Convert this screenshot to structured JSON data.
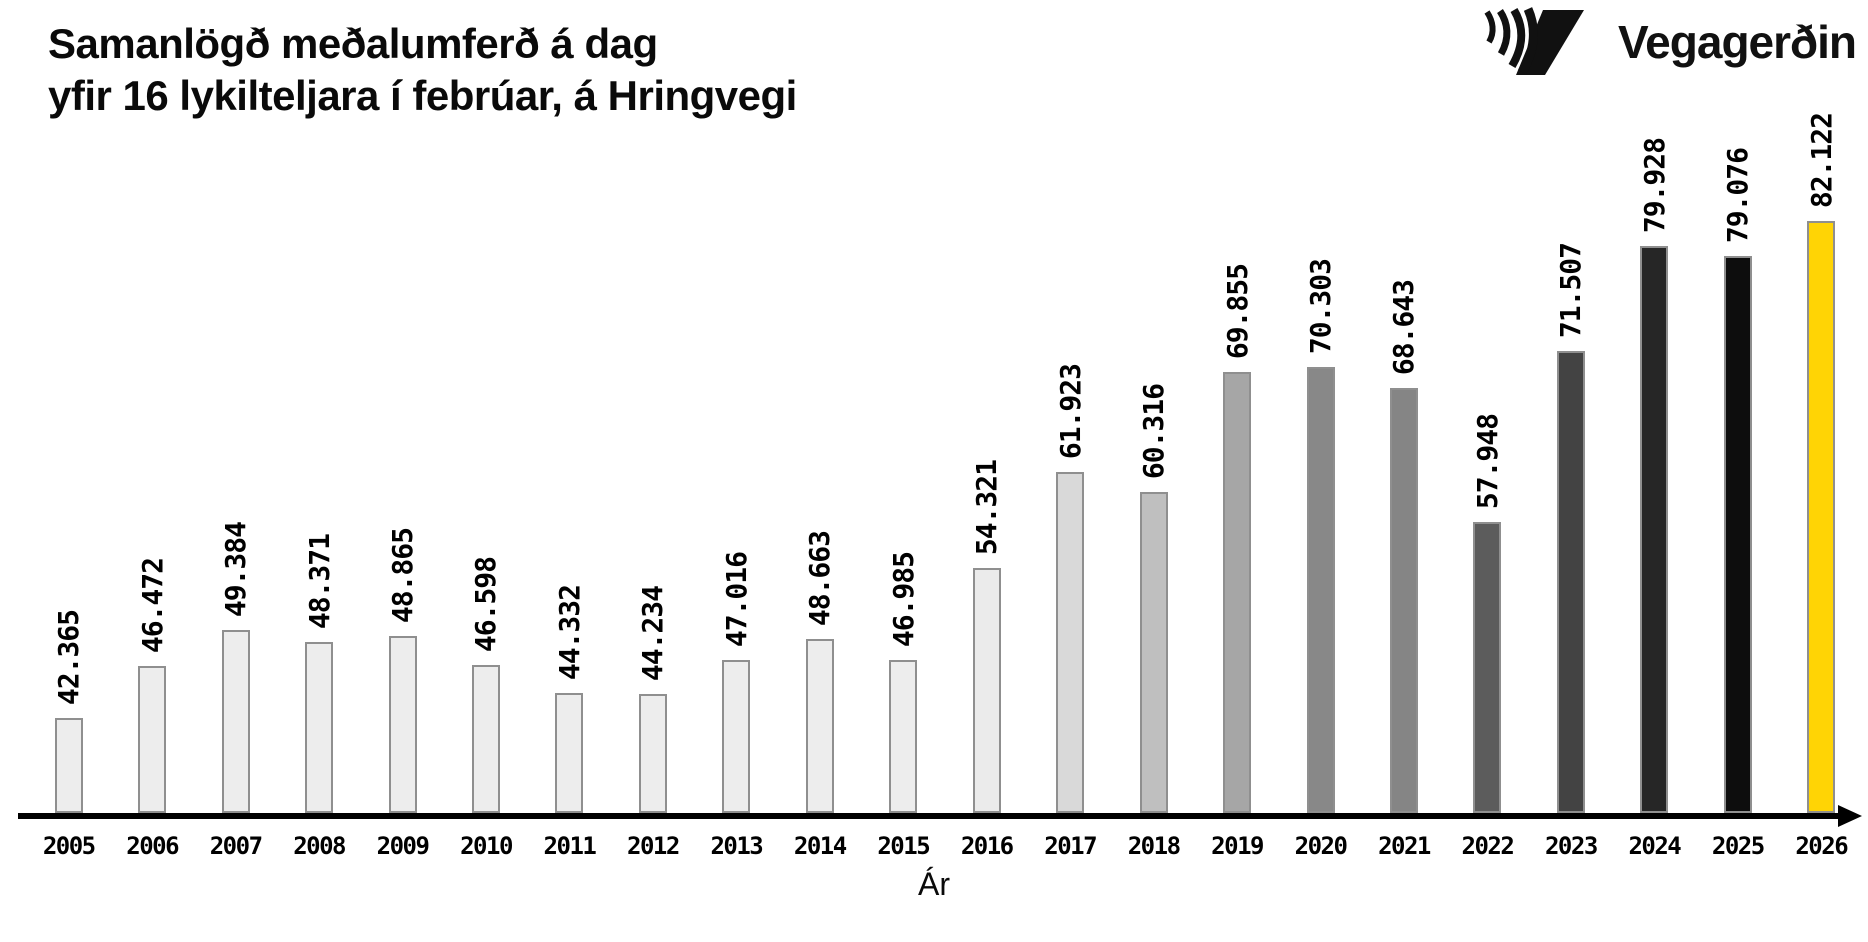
{
  "title": {
    "line1": "Samanlögð meðalumferð á dag",
    "line2": "yfir 16 lykilteljara í febrúar, á Hringvegi"
  },
  "logo": {
    "text": "Vegagerðin"
  },
  "chart_data": {
    "type": "bar",
    "title": "Samanlögð meðalumferð á dag yfir 16 lykilteljara í febrúar, á Hringvegi",
    "xlabel": "Ár",
    "ylabel": "",
    "grid": false,
    "legend": false,
    "categories": [
      "2005",
      "2006",
      "2007",
      "2008",
      "2009",
      "2010",
      "2011",
      "2012",
      "2013",
      "2014",
      "2015",
      "2016",
      "2017",
      "2018",
      "2019",
      "2020",
      "2021",
      "2022",
      "2023",
      "2024",
      "2025",
      "2026"
    ],
    "values": [
      42365,
      46472,
      49384,
      48371,
      48865,
      46598,
      44332,
      44234,
      47016,
      48663,
      46985,
      54321,
      61923,
      60316,
      69855,
      70303,
      68643,
      57948,
      71507,
      79928,
      79076,
      82122
    ],
    "value_labels": [
      "42.365",
      "46.472",
      "49.384",
      "48.371",
      "48.865",
      "46.598",
      "44.332",
      "44.234",
      "47.016",
      "48.663",
      "46.985",
      "54.321",
      "61.923",
      "60.316",
      "69.855",
      "70.303",
      "68.643",
      "57.948",
      "71.507",
      "79.928",
      "79.076",
      "82.122"
    ],
    "bar_colors": [
      "#ededed",
      "#ededed",
      "#ededed",
      "#ededed",
      "#ededed",
      "#ededed",
      "#ededed",
      "#ededed",
      "#ededed",
      "#ededed",
      "#ededed",
      "#ebebeb",
      "#d9d9d9",
      "#bfbfbf",
      "#a6a6a6",
      "#888888",
      "#858585",
      "#5c5c5c",
      "#434343",
      "#262626",
      "#0d0d0d",
      "#ffd405"
    ],
    "bar_border_color": "#8f8f8f",
    "highlight_category": "2026",
    "highlight_color": "#ffd405",
    "axis_color": "#000000"
  }
}
